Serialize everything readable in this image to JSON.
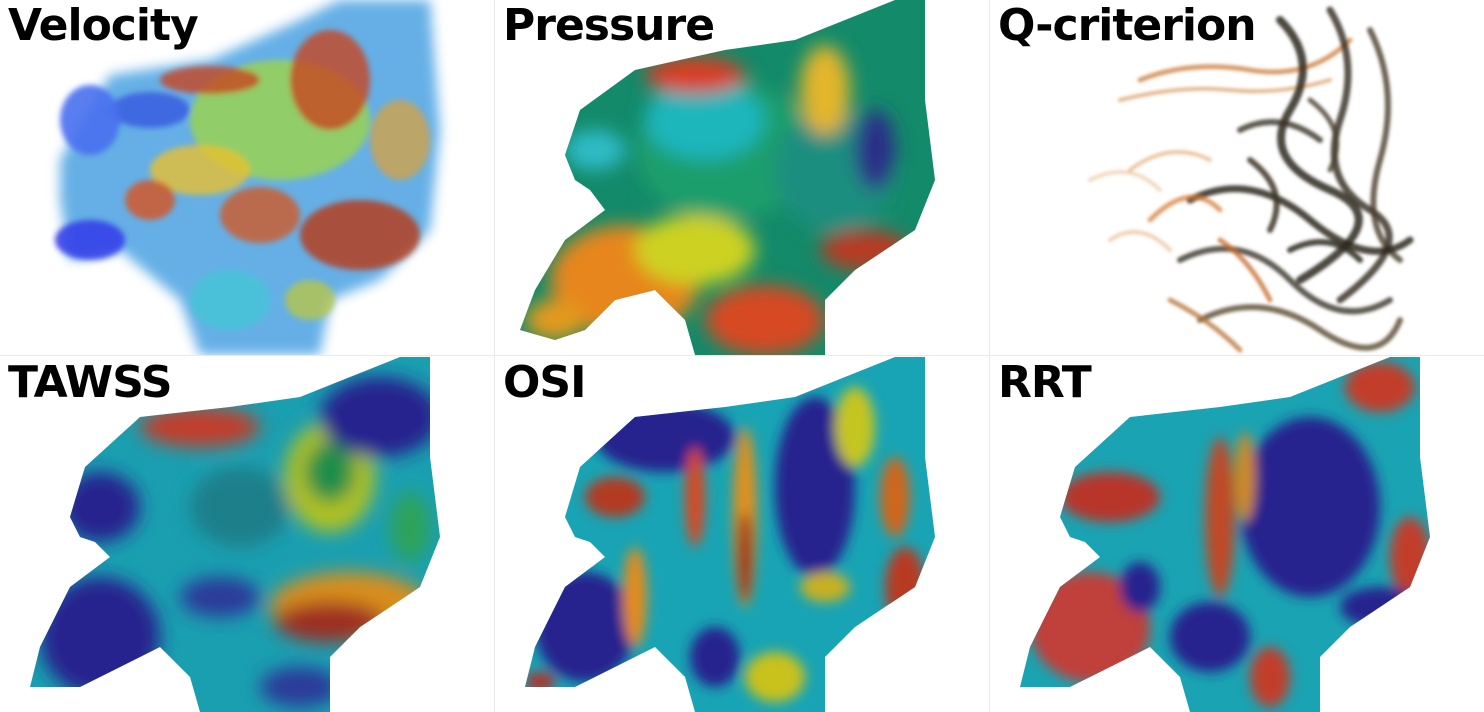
{
  "panels": [
    {
      "label": "Velocity"
    },
    {
      "label": "Pressure"
    },
    {
      "label": "Q-criterion"
    },
    {
      "label": "TAWSS"
    },
    {
      "label": "OSI"
    },
    {
      "label": "RRT"
    }
  ],
  "colors": {
    "dark_blue": "#23238f",
    "blue": "#2b3fd0",
    "cyan": "#19b5c0",
    "teal": "#0f8f84",
    "green": "#1f9a4a",
    "yellow": "#e6d21a",
    "orange": "#e3891b",
    "red": "#c63a2a",
    "dark_red": "#8c2a1c",
    "qcrit_dark": "#3a3325",
    "qcrit_orange": "#d8893b"
  }
}
